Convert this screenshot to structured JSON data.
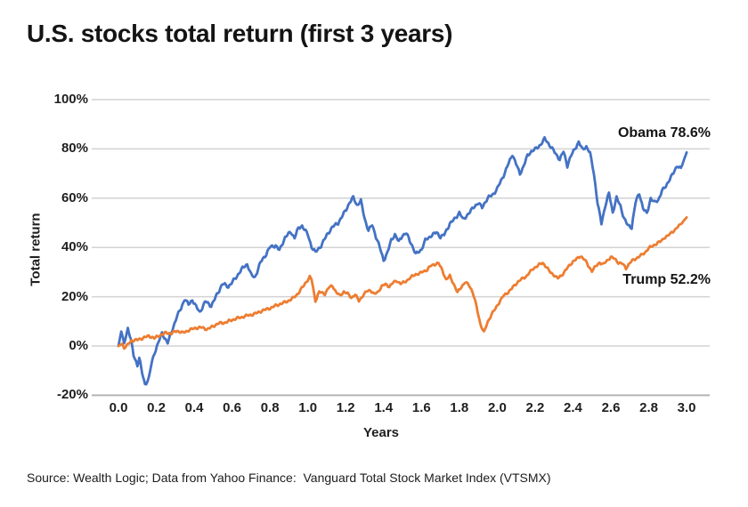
{
  "title": "U.S. stocks total return (first 3 years)",
  "source": "Source: Wealth Logic; Data from Yahoo Finance:  Vanguard Total Stock Market Index (VTSMX)",
  "colors": {
    "obama_line": "#4472C4",
    "trump_line": "#ED7D31",
    "gridline": "#d2d2d2",
    "bottom_gridline": "#b3b3b3",
    "text": "#1f1f1f",
    "background": "#ffffff"
  },
  "chart_data": {
    "type": "line",
    "title": "U.S. stocks total return (first 3 years)",
    "xlabel": "Years",
    "ylabel": "Total return",
    "xlim": [
      0,
      3
    ],
    "ylim": [
      -20,
      100
    ],
    "x_ticks": [
      0.0,
      0.2,
      0.4,
      0.6,
      0.8,
      1.0,
      1.2,
      1.4,
      1.6,
      1.8,
      2.0,
      2.2,
      2.4,
      2.6,
      2.8,
      3.0
    ],
    "y_ticks": [
      100,
      80,
      60,
      40,
      20,
      0,
      -20
    ],
    "y_tick_suffix": "%",
    "grid": "horizontal",
    "legend": "none",
    "series": [
      {
        "name": "Obama",
        "color": "#4472C4",
        "end_label": "Obama 78.6%",
        "final_return_pct": 78.6,
        "points": [
          [
            0.0,
            0
          ],
          [
            0.015,
            6
          ],
          [
            0.03,
            1
          ],
          [
            0.05,
            7.5
          ],
          [
            0.065,
            3
          ],
          [
            0.08,
            -4
          ],
          [
            0.1,
            -8
          ],
          [
            0.11,
            -5
          ],
          [
            0.125,
            -11
          ],
          [
            0.14,
            -15.5
          ],
          [
            0.16,
            -13
          ],
          [
            0.175,
            -7
          ],
          [
            0.19,
            -3
          ],
          [
            0.21,
            1
          ],
          [
            0.23,
            5
          ],
          [
            0.26,
            1.5
          ],
          [
            0.29,
            8
          ],
          [
            0.31,
            12
          ],
          [
            0.33,
            15
          ],
          [
            0.35,
            19
          ],
          [
            0.37,
            17
          ],
          [
            0.39,
            19
          ],
          [
            0.41,
            16
          ],
          [
            0.43,
            13.5
          ],
          [
            0.46,
            18
          ],
          [
            0.49,
            16.5
          ],
          [
            0.52,
            21
          ],
          [
            0.55,
            25
          ],
          [
            0.58,
            24
          ],
          [
            0.62,
            28
          ],
          [
            0.65,
            31
          ],
          [
            0.68,
            33
          ],
          [
            0.7,
            29
          ],
          [
            0.72,
            28
          ],
          [
            0.75,
            34
          ],
          [
            0.78,
            37
          ],
          [
            0.8,
            40
          ],
          [
            0.83,
            41
          ],
          [
            0.85,
            39
          ],
          [
            0.88,
            44
          ],
          [
            0.91,
            46
          ],
          [
            0.93,
            44
          ],
          [
            0.95,
            48
          ],
          [
            0.97,
            49
          ],
          [
            1.0,
            45
          ],
          [
            1.02,
            40
          ],
          [
            1.04,
            38
          ],
          [
            1.07,
            41
          ],
          [
            1.1,
            45
          ],
          [
            1.13,
            48
          ],
          [
            1.16,
            50
          ],
          [
            1.19,
            54
          ],
          [
            1.22,
            58
          ],
          [
            1.24,
            60
          ],
          [
            1.26,
            57
          ],
          [
            1.28,
            59
          ],
          [
            1.3,
            52
          ],
          [
            1.32,
            47
          ],
          [
            1.34,
            49
          ],
          [
            1.36,
            44
          ],
          [
            1.38,
            40
          ],
          [
            1.4,
            35
          ],
          [
            1.42,
            38
          ],
          [
            1.44,
            43
          ],
          [
            1.46,
            45
          ],
          [
            1.48,
            42
          ],
          [
            1.5,
            45
          ],
          [
            1.52,
            46
          ],
          [
            1.55,
            41
          ],
          [
            1.57,
            37
          ],
          [
            1.6,
            39
          ],
          [
            1.62,
            43
          ],
          [
            1.65,
            45
          ],
          [
            1.68,
            46
          ],
          [
            1.7,
            44
          ],
          [
            1.72,
            45
          ],
          [
            1.75,
            50
          ],
          [
            1.78,
            52
          ],
          [
            1.8,
            54
          ],
          [
            1.82,
            51
          ],
          [
            1.85,
            54
          ],
          [
            1.88,
            57
          ],
          [
            1.9,
            58
          ],
          [
            1.92,
            56
          ],
          [
            1.95,
            60
          ],
          [
            1.98,
            62
          ],
          [
            2.0,
            64
          ],
          [
            2.02,
            67
          ],
          [
            2.04,
            70
          ],
          [
            2.06,
            74
          ],
          [
            2.08,
            78
          ],
          [
            2.1,
            74
          ],
          [
            2.12,
            70
          ],
          [
            2.14,
            73
          ],
          [
            2.16,
            77
          ],
          [
            2.18,
            79
          ],
          [
            2.2,
            80
          ],
          [
            2.23,
            82
          ],
          [
            2.25,
            84
          ],
          [
            2.27,
            82
          ],
          [
            2.29,
            80
          ],
          [
            2.31,
            78
          ],
          [
            2.33,
            76
          ],
          [
            2.35,
            79
          ],
          [
            2.37,
            73
          ],
          [
            2.39,
            77
          ],
          [
            2.41,
            80
          ],
          [
            2.43,
            83
          ],
          [
            2.45,
            80
          ],
          [
            2.47,
            81
          ],
          [
            2.49,
            78
          ],
          [
            2.51,
            70
          ],
          [
            2.53,
            58
          ],
          [
            2.55,
            50
          ],
          [
            2.57,
            57
          ],
          [
            2.59,
            62
          ],
          [
            2.61,
            54
          ],
          [
            2.63,
            60
          ],
          [
            2.65,
            57
          ],
          [
            2.67,
            52
          ],
          [
            2.69,
            49
          ],
          [
            2.71,
            48
          ],
          [
            2.73,
            58
          ],
          [
            2.75,
            62
          ],
          [
            2.77,
            56
          ],
          [
            2.79,
            54
          ],
          [
            2.81,
            60
          ],
          [
            2.83,
            58
          ],
          [
            2.85,
            59
          ],
          [
            2.87,
            63
          ],
          [
            2.89,
            65
          ],
          [
            2.91,
            68
          ],
          [
            2.93,
            70
          ],
          [
            2.95,
            73
          ],
          [
            2.97,
            72
          ],
          [
            3.0,
            78.6
          ]
        ]
      },
      {
        "name": "Trump",
        "color": "#ED7D31",
        "end_label": "Trump 52.2%",
        "final_return_pct": 52.2,
        "points": [
          [
            0.0,
            0
          ],
          [
            0.02,
            1
          ],
          [
            0.03,
            -0.8
          ],
          [
            0.05,
            0.5
          ],
          [
            0.07,
            2
          ],
          [
            0.1,
            2.5
          ],
          [
            0.13,
            3.5
          ],
          [
            0.16,
            4
          ],
          [
            0.19,
            3
          ],
          [
            0.22,
            4.5
          ],
          [
            0.25,
            5.5
          ],
          [
            0.28,
            5
          ],
          [
            0.31,
            6
          ],
          [
            0.34,
            5.5
          ],
          [
            0.37,
            6.5
          ],
          [
            0.4,
            7
          ],
          [
            0.44,
            7.5
          ],
          [
            0.47,
            7
          ],
          [
            0.5,
            8
          ],
          [
            0.53,
            9
          ],
          [
            0.56,
            9.5
          ],
          [
            0.59,
            10.5
          ],
          [
            0.62,
            11
          ],
          [
            0.65,
            11.5
          ],
          [
            0.68,
            12.5
          ],
          [
            0.71,
            13
          ],
          [
            0.74,
            13.5
          ],
          [
            0.77,
            14.5
          ],
          [
            0.8,
            15.5
          ],
          [
            0.83,
            16.5
          ],
          [
            0.86,
            17
          ],
          [
            0.89,
            18
          ],
          [
            0.92,
            19.5
          ],
          [
            0.95,
            21.5
          ],
          [
            0.98,
            24.5
          ],
          [
            1.01,
            28
          ],
          [
            1.02,
            27
          ],
          [
            1.04,
            18.5
          ],
          [
            1.06,
            22
          ],
          [
            1.09,
            21
          ],
          [
            1.11,
            23.5
          ],
          [
            1.13,
            24.5
          ],
          [
            1.15,
            22
          ],
          [
            1.17,
            20.5
          ],
          [
            1.19,
            22
          ],
          [
            1.21,
            21
          ],
          [
            1.23,
            19.5
          ],
          [
            1.25,
            21
          ],
          [
            1.27,
            18.5
          ],
          [
            1.29,
            20.5
          ],
          [
            1.31,
            22
          ],
          [
            1.33,
            22.5
          ],
          [
            1.35,
            21
          ],
          [
            1.37,
            22
          ],
          [
            1.39,
            24.5
          ],
          [
            1.41,
            25
          ],
          [
            1.43,
            24
          ],
          [
            1.45,
            25.5
          ],
          [
            1.47,
            26.5
          ],
          [
            1.49,
            25.5
          ],
          [
            1.51,
            26
          ],
          [
            1.53,
            27
          ],
          [
            1.55,
            28
          ],
          [
            1.57,
            29
          ],
          [
            1.59,
            29.5
          ],
          [
            1.61,
            30.5
          ],
          [
            1.63,
            31
          ],
          [
            1.65,
            32.5
          ],
          [
            1.67,
            33
          ],
          [
            1.69,
            33.5
          ],
          [
            1.71,
            31
          ],
          [
            1.73,
            27
          ],
          [
            1.75,
            28.5
          ],
          [
            1.77,
            25
          ],
          [
            1.79,
            21.5
          ],
          [
            1.81,
            24
          ],
          [
            1.83,
            26
          ],
          [
            1.85,
            25
          ],
          [
            1.87,
            22
          ],
          [
            1.89,
            16
          ],
          [
            1.91,
            9
          ],
          [
            1.93,
            5.5
          ],
          [
            1.95,
            10
          ],
          [
            1.97,
            13
          ],
          [
            1.99,
            15
          ],
          [
            2.01,
            17.5
          ],
          [
            2.03,
            20
          ],
          [
            2.05,
            21.5
          ],
          [
            2.07,
            23
          ],
          [
            2.09,
            24.5
          ],
          [
            2.11,
            26
          ],
          [
            2.13,
            27
          ],
          [
            2.15,
            28
          ],
          [
            2.17,
            30
          ],
          [
            2.19,
            31.5
          ],
          [
            2.21,
            32.5
          ],
          [
            2.24,
            33.5
          ],
          [
            2.26,
            32
          ],
          [
            2.28,
            30
          ],
          [
            2.3,
            29
          ],
          [
            2.32,
            27.5
          ],
          [
            2.34,
            28.5
          ],
          [
            2.36,
            30.5
          ],
          [
            2.38,
            32.5
          ],
          [
            2.4,
            34.5
          ],
          [
            2.42,
            35.5
          ],
          [
            2.44,
            36.5
          ],
          [
            2.46,
            35
          ],
          [
            2.48,
            32.5
          ],
          [
            2.5,
            30.5
          ],
          [
            2.52,
            32.5
          ],
          [
            2.54,
            34
          ],
          [
            2.56,
            33
          ],
          [
            2.58,
            34.5
          ],
          [
            2.6,
            36
          ],
          [
            2.62,
            35.5
          ],
          [
            2.64,
            34
          ],
          [
            2.66,
            33.5
          ],
          [
            2.68,
            31.5
          ],
          [
            2.7,
            33.5
          ],
          [
            2.72,
            35
          ],
          [
            2.74,
            36
          ],
          [
            2.76,
            37
          ],
          [
            2.78,
            38
          ],
          [
            2.8,
            39.5
          ],
          [
            2.82,
            40.5
          ],
          [
            2.84,
            41.5
          ],
          [
            2.86,
            42.5
          ],
          [
            2.88,
            44
          ],
          [
            2.9,
            44.5
          ],
          [
            2.92,
            46
          ],
          [
            2.94,
            47
          ],
          [
            2.96,
            49
          ],
          [
            2.98,
            50.5
          ],
          [
            3.0,
            52.2
          ]
        ]
      }
    ]
  }
}
